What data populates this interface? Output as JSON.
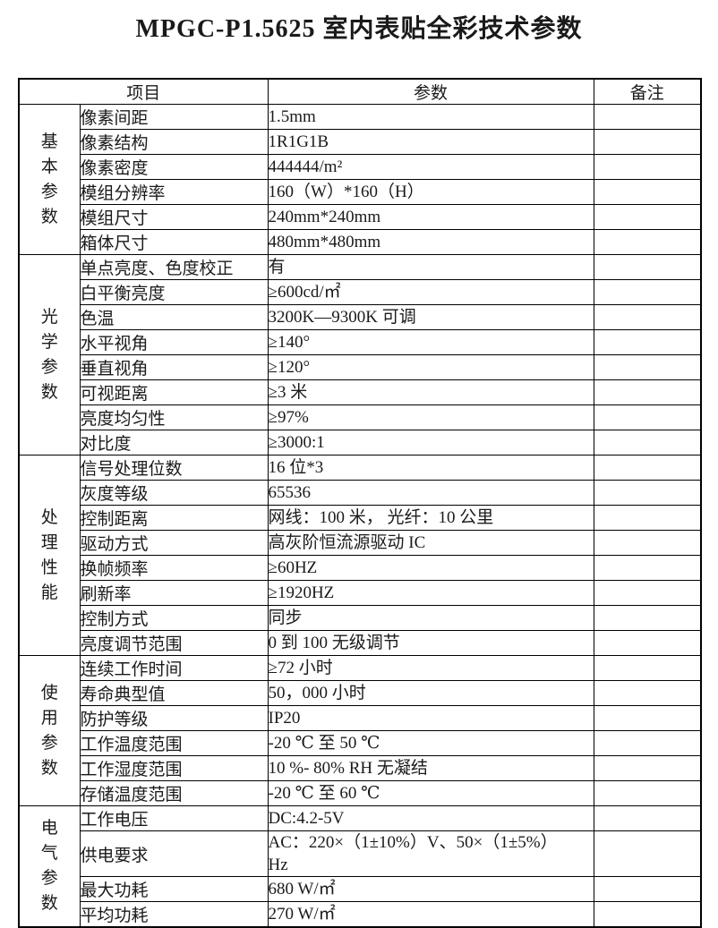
{
  "title": "MPGC-P1.5625 室内表贴全彩技术参数",
  "table": {
    "headers": {
      "item": "项目",
      "param": "参数",
      "remark": "备注"
    },
    "groups": [
      {
        "id": "basic",
        "name": "基本参数",
        "rows": [
          {
            "item": "像素间距",
            "param": "1.5mm",
            "remark": ""
          },
          {
            "item": "像素结构",
            "param": "1R1G1B",
            "remark": ""
          },
          {
            "item": "像素密度",
            "param": "444444/m²",
            "remark": ""
          },
          {
            "item": "模组分辨率",
            "param": "160（W）*160（H）",
            "remark": ""
          },
          {
            "item": "模组尺寸",
            "param": "240mm*240mm",
            "remark": ""
          },
          {
            "item": "箱体尺寸",
            "param": "480mm*480mm",
            "remark": ""
          }
        ]
      },
      {
        "id": "optical",
        "name": "光学参数",
        "rows": [
          {
            "item": "单点亮度、色度校正",
            "param": "有",
            "remark": ""
          },
          {
            "item": "白平衡亮度",
            "param": "≥600cd/㎡",
            "remark": ""
          },
          {
            "item": "色温",
            "param": "3200K—9300K 可调",
            "remark": ""
          },
          {
            "item": "水平视角",
            "param": "≥140°",
            "remark": ""
          },
          {
            "item": "垂直视角",
            "param": "≥120°",
            "remark": ""
          },
          {
            "item": "可视距离",
            "param": "≥3 米",
            "remark": ""
          },
          {
            "item": "亮度均匀性",
            "param": "≥97%",
            "remark": ""
          },
          {
            "item": "对比度",
            "param": "≥3000:1",
            "remark": ""
          }
        ]
      },
      {
        "id": "processing",
        "name": "处理性能",
        "rows": [
          {
            "item": "信号处理位数",
            "param": "16 位*3",
            "remark": ""
          },
          {
            "item": "灰度等级",
            "param": "65536",
            "remark": ""
          },
          {
            "item": "控制距离",
            "param": "网线：100 米， 光纤：10 公里",
            "remark": ""
          },
          {
            "item": "驱动方式",
            "param": "高灰阶恒流源驱动 IC",
            "remark": ""
          },
          {
            "item": "换帧频率",
            "param": "≥60HZ",
            "remark": ""
          },
          {
            "item": "刷新率",
            "param": "≥1920HZ",
            "remark": ""
          },
          {
            "item": "控制方式",
            "param": "同步",
            "remark": ""
          },
          {
            "item": "亮度调节范围",
            "param": "0 到 100 无级调节",
            "remark": ""
          }
        ]
      },
      {
        "id": "usage",
        "name": "使用参数",
        "rows": [
          {
            "item": "连续工作时间",
            "param": "≥72 小时",
            "remark": ""
          },
          {
            "item": "寿命典型值",
            "param": "50，000 小时",
            "remark": ""
          },
          {
            "item": "防护等级",
            "param": "IP20",
            "remark": ""
          },
          {
            "item": "工作温度范围",
            "param": "-20 ℃ 至 50 ℃",
            "remark": ""
          },
          {
            "item": "工作湿度范围",
            "param": "10 %- 80% RH 无凝结",
            "remark": ""
          },
          {
            "item": "存储温度范围",
            "param": "-20 ℃ 至 60 ℃",
            "remark": ""
          }
        ]
      },
      {
        "id": "electrical",
        "name": "电气参数",
        "rows": [
          {
            "item": "工作电压",
            "param": "DC:4.2-5V",
            "remark": ""
          },
          {
            "item": "供电要求",
            "param": "AC：220×（1±10%）V、50×（1±5%）\nHz",
            "remark": ""
          },
          {
            "item": "最大功耗",
            "param": "680 W/㎡",
            "remark": ""
          },
          {
            "item": "平均功耗",
            "param": "270 W/㎡",
            "remark": ""
          }
        ]
      }
    ]
  }
}
